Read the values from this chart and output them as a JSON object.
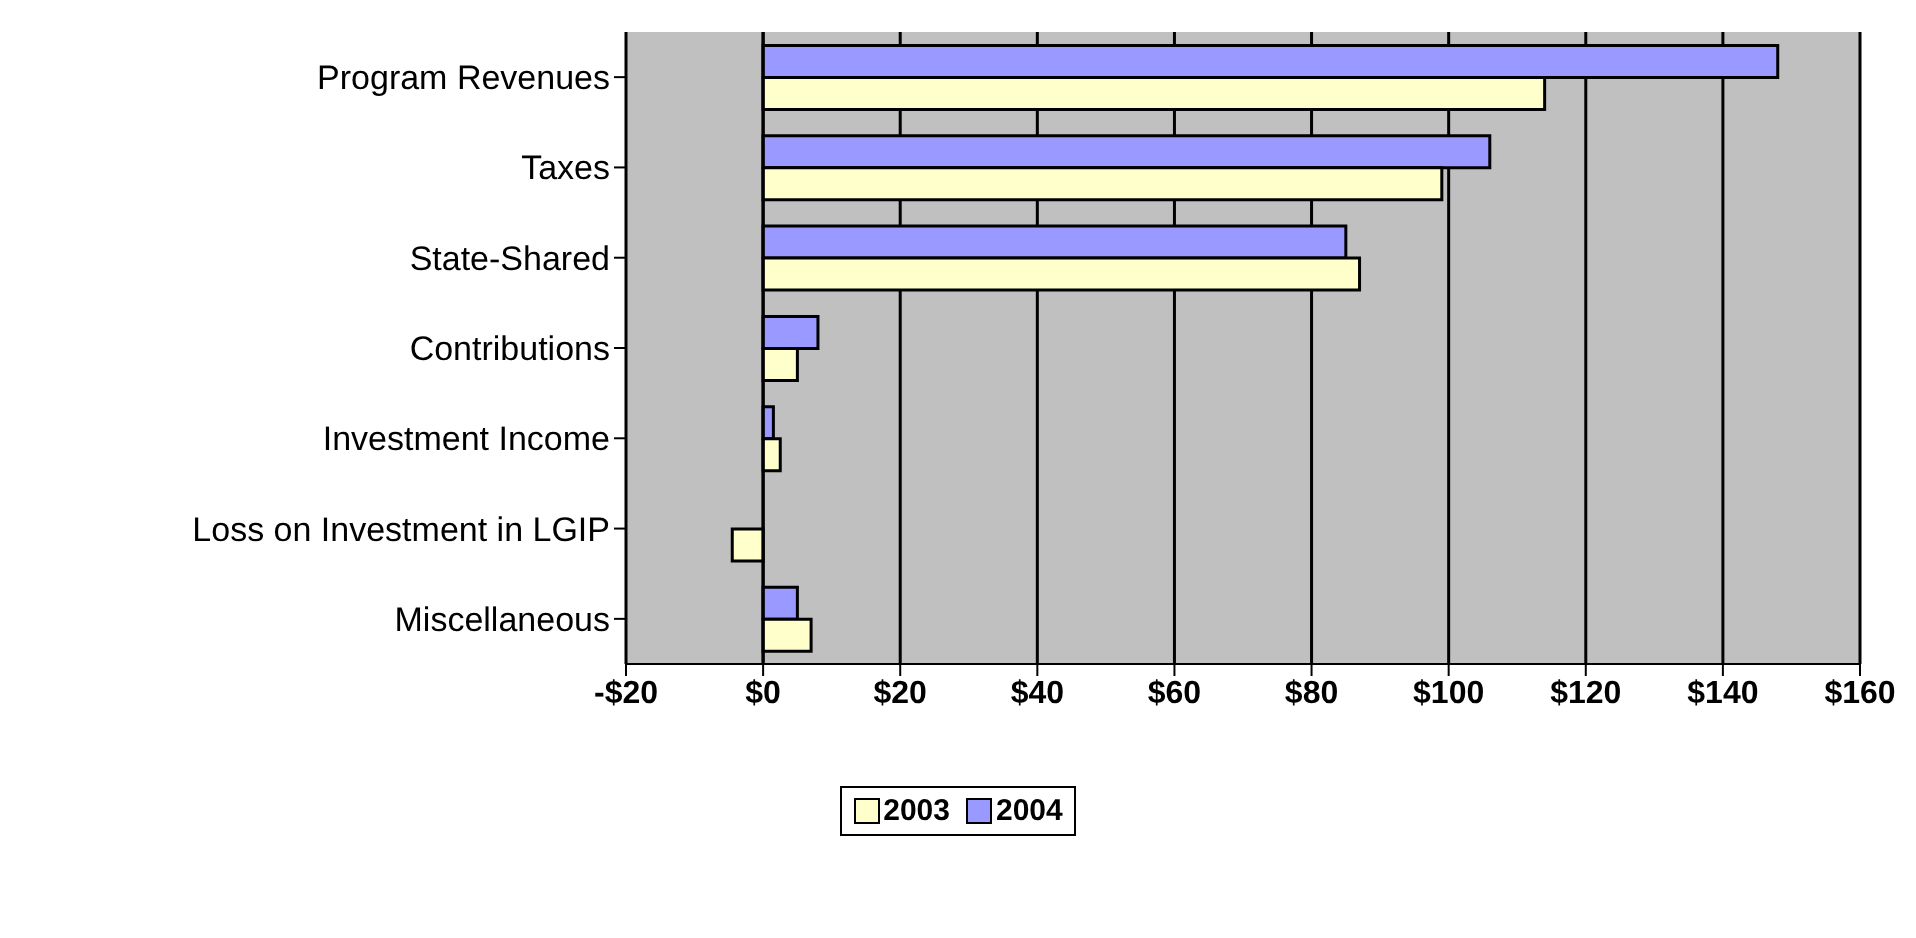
{
  "chart_data": {
    "type": "bar",
    "orientation": "horizontal",
    "categories": [
      "Program Revenues",
      "Taxes",
      "State-Shared",
      "Contributions",
      "Investment Income",
      "Loss on Investment in LGIP",
      "Miscellaneous"
    ],
    "series": [
      {
        "name": "2003",
        "color": "#ffffcc",
        "values": [
          114,
          99,
          87,
          5,
          2.5,
          -4.5,
          7
        ]
      },
      {
        "name": "2004",
        "color": "#9999ff",
        "values": [
          148,
          106,
          85,
          8,
          1.5,
          null,
          5
        ]
      }
    ],
    "xlim": [
      -20,
      160
    ],
    "xticks": [
      {
        "value": -20,
        "label": "-$20"
      },
      {
        "value": 0,
        "label": "$0"
      },
      {
        "value": 20,
        "label": "$20"
      },
      {
        "value": 40,
        "label": "$40"
      },
      {
        "value": 60,
        "label": "$60"
      },
      {
        "value": 80,
        "label": "$80"
      },
      {
        "value": 100,
        "label": "$100"
      },
      {
        "value": 120,
        "label": "$120"
      },
      {
        "value": 140,
        "label": "$140"
      },
      {
        "value": 160,
        "label": "$160"
      }
    ],
    "grid": "x",
    "legend": "bottom"
  }
}
